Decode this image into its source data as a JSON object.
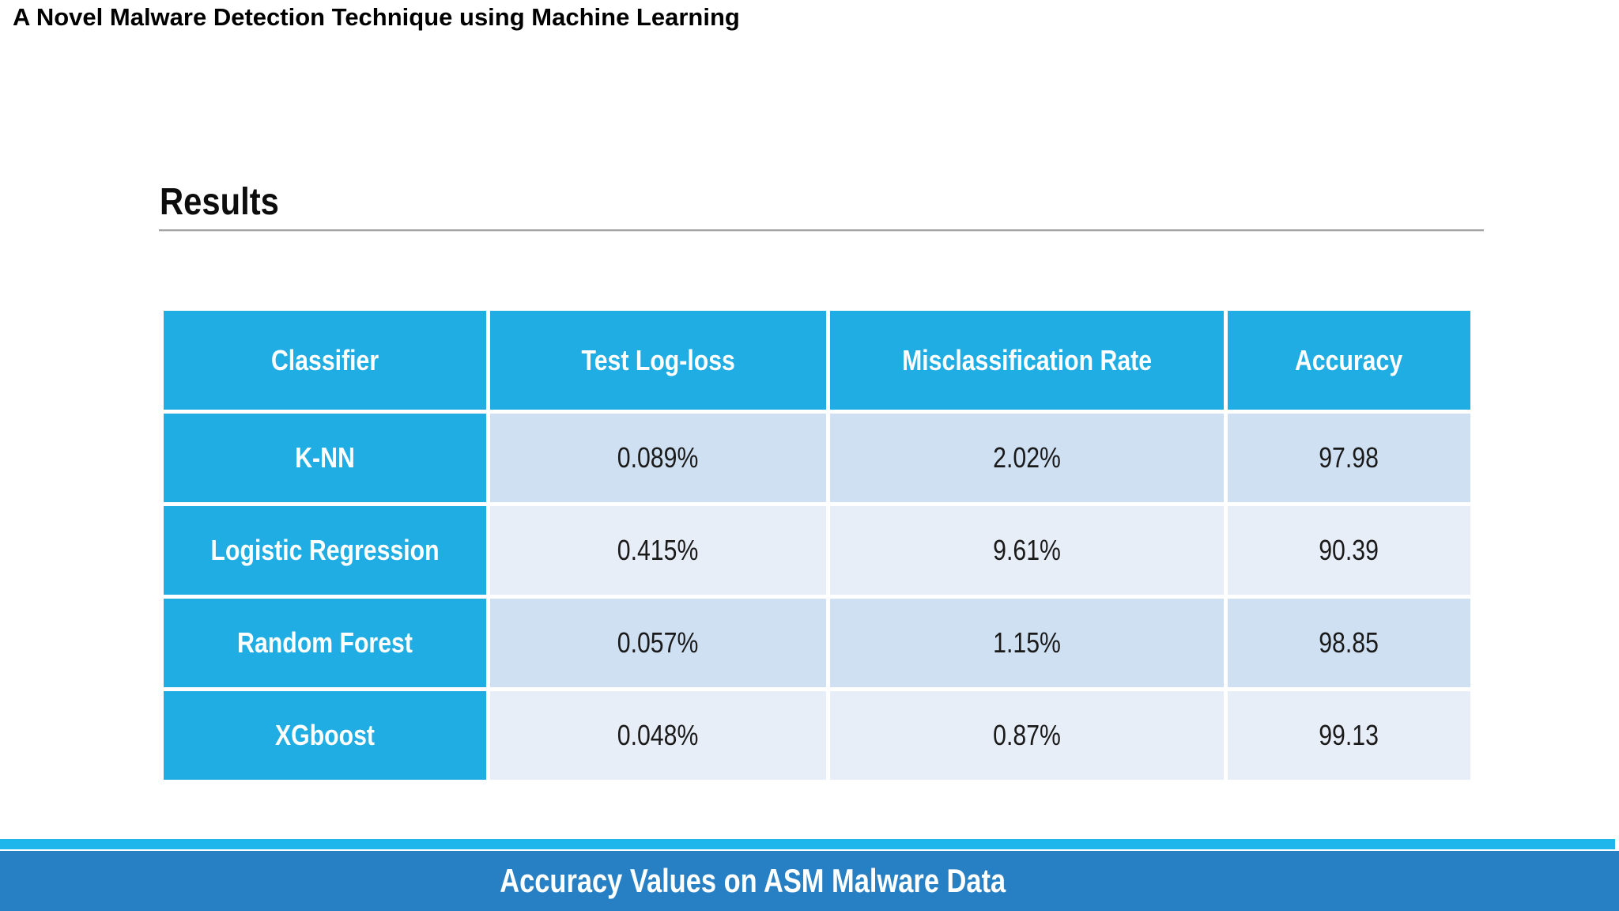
{
  "slide": {
    "title": "A Novel Malware Detection Technique using Machine Learning",
    "section_heading": "Results",
    "caption": "Accuracy Values on ASM Malware Data"
  },
  "results_table": {
    "columns": [
      "Classifier",
      "Test Log-loss",
      "Misclassification Rate",
      "Accuracy"
    ],
    "rows": [
      [
        "K-NN",
        "0.089%",
        "2.02%",
        "97.98"
      ],
      [
        "Logistic Regression",
        "0.415%",
        "9.61%",
        "90.39"
      ],
      [
        "Random Forest",
        "0.057%",
        "1.15%",
        "98.85"
      ],
      [
        "XGboost",
        "0.048%",
        "0.87%",
        "99.13"
      ]
    ]
  },
  "colors": {
    "table_header_blue": "#1fade4",
    "row_band_dark": "#cfe0f3",
    "row_band_light": "#e8eef8",
    "caption_bar_blue": "#2880c4",
    "caption_accent_cyan": "#1fb7eb",
    "heading_rule_gray": "#a3a3a3"
  }
}
